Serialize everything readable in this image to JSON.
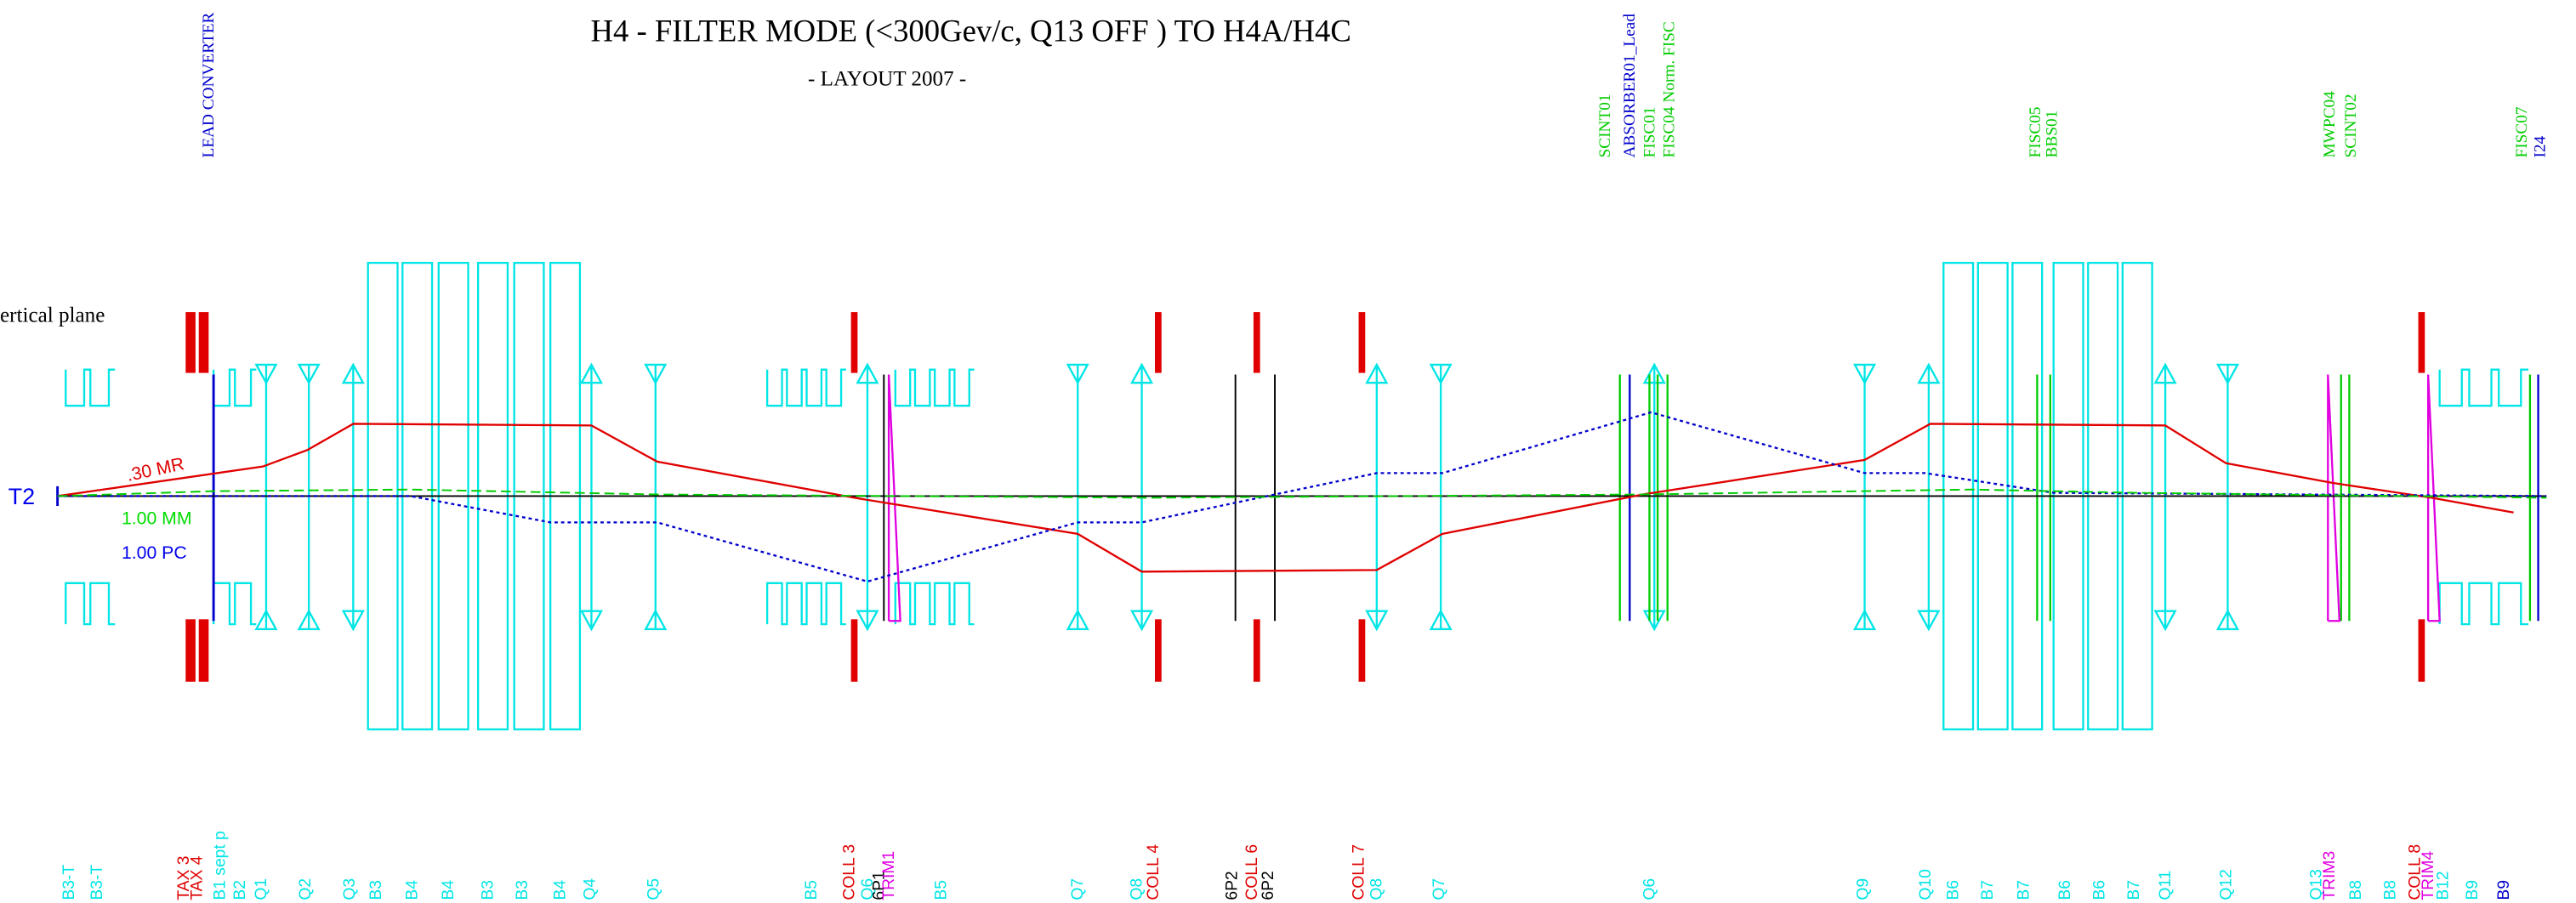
{
  "title": "H4 - FILTER MODE (<300Gev/c, Q13 OFF ) TO H4A/H4C",
  "subtitle": "- LAYOUT 2007 -",
  "left_labels": {
    "plane": "ertical plane",
    "target": "T2",
    "angle": ".30 MR",
    "size": "1.00 MM",
    "dispersion": "1.00 PC"
  },
  "top_labels": [
    "LEAD CONVERTER",
    "SCINT01",
    "ABSORBER01_Lead",
    "FISC01",
    "FISC04   Norm. FISC",
    "FISC05",
    "BBS01",
    "MWPC04",
    "SCINT02",
    "FISC07",
    "I24"
  ],
  "bottom_labels": [
    "B3-T",
    "B3-T",
    "TAX 3",
    "TAX 4",
    "B1 sept p",
    "B2",
    "Q1",
    "Q2",
    "Q3",
    "B3",
    "B4",
    "B4",
    "B3",
    "B3",
    "B4",
    "Q4",
    "Q5",
    "B5",
    "COLL 3",
    "Q6",
    "6P1",
    "TRIM1",
    "B5",
    "Q7",
    "Q8",
    "COLL 4",
    "6P2",
    "COLL 6",
    "6P2",
    "COLL 7",
    "Q8",
    "Q7",
    "Q6",
    "Q9",
    "Q10",
    "B6",
    "B7",
    "B7",
    "B6",
    "B6",
    "B7",
    "Q11",
    "Q12",
    "Q13",
    "TRIM3",
    "B8",
    "B8",
    "COLL 8",
    "TRIM4",
    "B12",
    "B9",
    "B9"
  ]
}
